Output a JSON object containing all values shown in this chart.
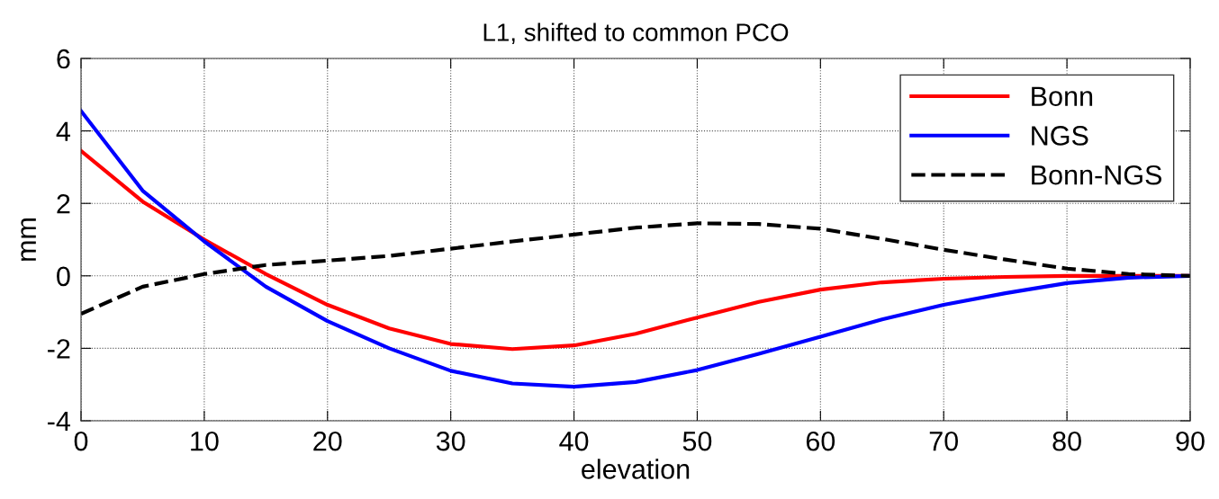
{
  "chart_data": {
    "type": "line",
    "title": "L1, shifted to common PCO",
    "xlabel": "elevation",
    "ylabel": "mm",
    "x": [
      0,
      5,
      10,
      15,
      20,
      25,
      30,
      35,
      40,
      45,
      50,
      55,
      60,
      65,
      70,
      75,
      80,
      85,
      90
    ],
    "series": [
      {
        "name": "Bonn",
        "color": "#ff0000",
        "line_style": "solid",
        "values": [
          3.45,
          2.05,
          1.0,
          0.05,
          -0.8,
          -1.45,
          -1.88,
          -2.02,
          -1.92,
          -1.6,
          -1.15,
          -0.72,
          -0.38,
          -0.18,
          -0.08,
          -0.03,
          0,
          0,
          0
        ]
      },
      {
        "name": "NGS",
        "color": "#0000ff",
        "line_style": "solid",
        "values": [
          4.55,
          2.35,
          0.95,
          -0.3,
          -1.25,
          -2.0,
          -2.62,
          -2.97,
          -3.06,
          -2.93,
          -2.6,
          -2.15,
          -1.68,
          -1.2,
          -0.8,
          -0.48,
          -0.2,
          -0.05,
          0
        ]
      },
      {
        "name": "Bonn-NGS",
        "color": "#000000",
        "line_style": "dashed",
        "values": [
          -1.05,
          -0.3,
          0.05,
          0.3,
          0.42,
          0.55,
          0.75,
          0.95,
          1.14,
          1.33,
          1.45,
          1.43,
          1.3,
          1.02,
          0.72,
          0.45,
          0.2,
          0.05,
          0
        ]
      }
    ],
    "xlim": [
      0,
      90
    ],
    "xticks": [
      0,
      10,
      20,
      30,
      40,
      50,
      60,
      70,
      80,
      90
    ],
    "ylim": [
      -4,
      6
    ],
    "yticks": [
      -4,
      -2,
      0,
      2,
      4,
      6
    ],
    "grid": true,
    "legend": "top right"
  }
}
